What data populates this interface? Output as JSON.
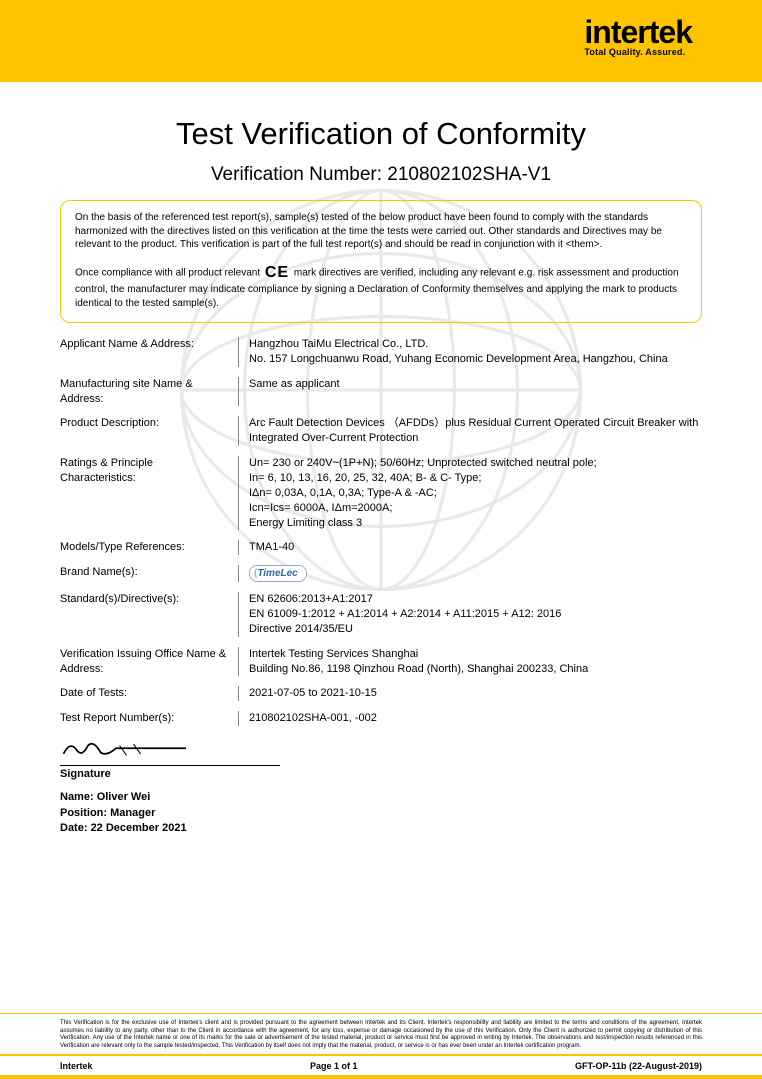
{
  "brand": {
    "name": "intertek",
    "tagline": "Total Quality. Assured.",
    "accent_color": "#ffc400"
  },
  "title": "Test Verification of Conformity",
  "verification_label": "Verification Number: ",
  "verification_number": "210802102SHA-V1",
  "box": {
    "p1": "On the basis of the referenced test report(s), sample(s) tested of the below product have been found to comply with the standards harmonized with the directives listed on this verification at the time the tests were carried out.  Other standards and Directives may be relevant to the product. This verification is part of the full test report(s) and should be read in conjunction with it <them>.",
    "p2a": "Once compliance with all product relevant ",
    "p2b": " mark directives are verified, including any relevant e.g. risk assessment and production control, the manufacturer may indicate compliance by signing a Declaration of Conformity themselves and applying the mark to products identical to the tested sample(s)."
  },
  "fields": [
    {
      "label": "Applicant Name & Address:",
      "value": "Hangzhou TaiMu Electrical Co., LTD.\nNo. 157 Longchuanwu Road, Yuhang Economic Development Area, Hangzhou, China"
    },
    {
      "label": "Manufacturing site Name & Address:",
      "value": "Same as applicant"
    },
    {
      "label": "Product Description:",
      "value": "Arc Fault Detection Devices （AFDDs）plus Residual Current Operated Circuit Breaker with Integrated Over-Current Protection"
    },
    {
      "label": "Ratings & Principle Characteristics:",
      "value": "Un= 230 or 240V~(1P+N); 50/60Hz; Unprotected switched neutral pole;\nIn= 6, 10, 13, 16, 20, 25, 32, 40A; B- & C- Type;\nIΔn= 0,03A, 0,1A, 0,3A; Type-A & -AC;\nIcn=Ics= 6000A, IΔm=2000A;\nEnergy Limiting class 3"
    },
    {
      "label": "Models/Type References:",
      "value": "TMA1-40"
    },
    {
      "label": "Brand Name(s):",
      "value": "__BRAND__"
    },
    {
      "label": "Standard(s)/Directive(s):",
      "value": "EN 62606:2013+A1:2017\nEN 61009-1:2012 + A1:2014 + A2:2014 + A11:2015 + A12: 2016\nDirective 2014/35/EU"
    },
    {
      "label": "Verification Issuing Office Name & Address:",
      "value": "Intertek Testing Services Shanghai\nBuilding No.86, 1198 Qinzhou Road (North), Shanghai 200233, China"
    },
    {
      "label": "Date of Tests:",
      "value": "2021-07-05 to 2021-10-15"
    },
    {
      "label": "Test Report Number(s):",
      "value": "210802102SHA-001, -002"
    }
  ],
  "brand_logo_text": "TimeLec",
  "signature": {
    "label": "Signature",
    "name_label": "Name: ",
    "name": "Oliver Wei",
    "position_label": "Position: ",
    "position": "Manager",
    "date_label": "Date: ",
    "date": "22 December 2021"
  },
  "disclaimer": "This Verification is for the exclusive use of Intertek's client and is provided pursuant to the agreement between Intertek and its Client. Intertek's responsibility and liability are limited to the terms and conditions of the agreement. Intertek assumes no liability to any party, other than to the Client in accordance with the agreement, for any loss, expense or damage occasioned by the use of this Verification. Only the Client is authorized to permit copying or distribution of this Verification. Any use of the Intertek name or one of its marks for the sale or advertisement of the tested material, product or service must first be approved in writing by Intertek. The observations and test/inspection results referenced in this Verification are relevant only to the sample tested/inspected. This Verification by itself does not imply that the material, product, or service is or has ever been under an Intertek certification program.",
  "footer": {
    "left": "Intertek",
    "center": "Page 1 of 1",
    "right": "GFT-OP-11b (22-August-2019)"
  }
}
